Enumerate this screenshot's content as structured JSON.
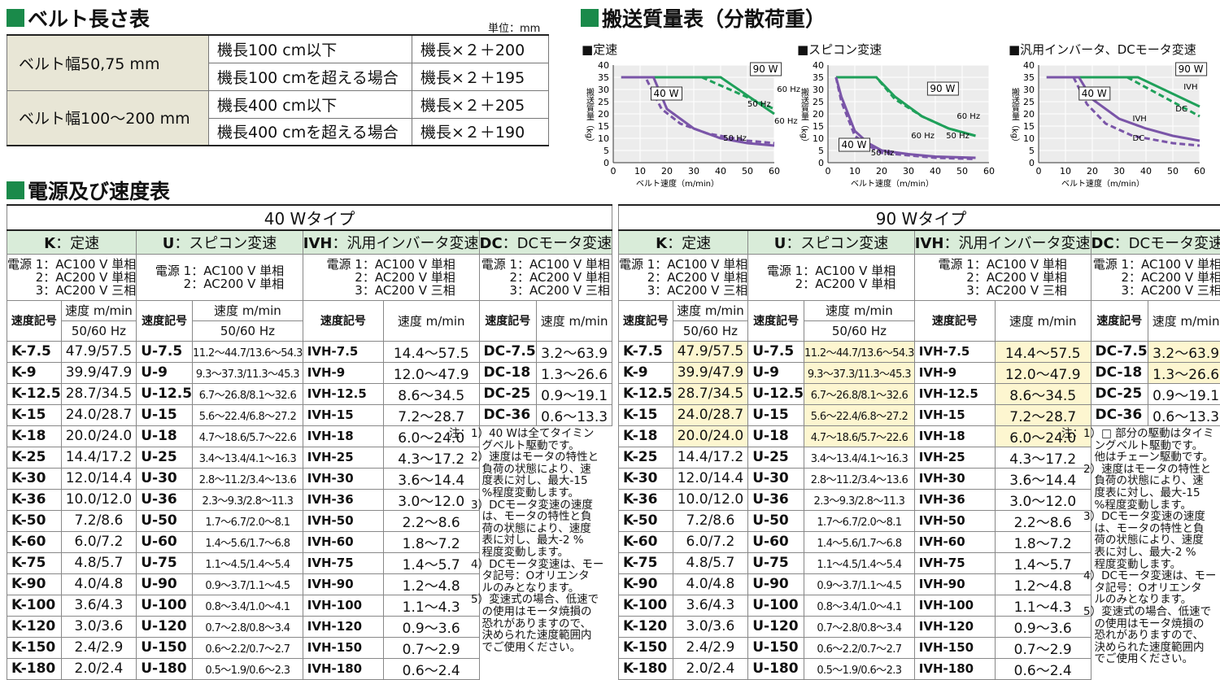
{
  "belt": {
    "title": "ベルト長さ表",
    "unit": "単位：mm",
    "rows": [
      {
        "width": "ベルト幅50,75 mm",
        "cond": "機長100 cm以下",
        "formula": "機長×２＋200"
      },
      {
        "width": "",
        "cond": "機長100 cmを超える場合",
        "formula": "機長×２＋195"
      },
      {
        "width": "ベルト幅100～200 mm",
        "cond": "機長400 cm以下",
        "formula": "機長×２＋205"
      },
      {
        "width": "",
        "cond": "機長400 cmを超える場合",
        "formula": "機長×２＋190"
      }
    ]
  },
  "load": {
    "title": "搬送質量表（分散荷重）",
    "ylabel": "搬送質量（kg）",
    "xlabel": "ベルト速度（m/min）",
    "charts": [
      {
        "title": "■定速"
      },
      {
        "title": "■スピコン変速"
      },
      {
        "title": "■汎用インバータ、DCモータ変速"
      }
    ]
  },
  "chart_data": [
    {
      "type": "line",
      "title": "定速",
      "xlabel": "ベルト速度（m/min）",
      "ylabel": "搬送質量（kg）",
      "xlim": [
        0,
        60
      ],
      "ylim": [
        0,
        40
      ],
      "grid": true,
      "series": [
        {
          "name": "90 W 60 Hz",
          "x": [
            3,
            40,
            60
          ],
          "y": [
            35,
            35,
            20
          ]
        },
        {
          "name": "90 W 50 Hz",
          "x": [
            3,
            33,
            60
          ],
          "y": [
            35,
            35,
            22
          ]
        },
        {
          "name": "40 W 60 Hz",
          "x": [
            3,
            15,
            20,
            30,
            40,
            50,
            60
          ],
          "y": [
            35,
            35,
            22,
            14,
            10,
            8,
            7
          ]
        },
        {
          "name": "40 W 50 Hz",
          "x": [
            3,
            12,
            18,
            25,
            35,
            50,
            60
          ],
          "y": [
            35,
            35,
            22,
            16,
            12,
            9,
            8
          ]
        }
      ],
      "labels": [
        "90 W",
        "60 Hz",
        "50 Hz",
        "40 W",
        "60 Hz",
        "50 Hz"
      ]
    },
    {
      "type": "line",
      "title": "スピコン変速",
      "xlabel": "ベルト速度（m/min）",
      "ylabel": "搬送質量（kg）",
      "xlim": [
        0,
        60
      ],
      "ylim": [
        0,
        40
      ],
      "grid": true,
      "series": [
        {
          "name": "90 W 60 Hz",
          "x": [
            3,
            18,
            25,
            35,
            45,
            55
          ],
          "y": [
            35,
            35,
            27,
            19,
            14,
            11
          ]
        },
        {
          "name": "90 W 50 Hz",
          "x": [
            3,
            18,
            25,
            35,
            45,
            55
          ],
          "y": [
            35,
            35,
            26,
            19,
            14,
            11
          ]
        },
        {
          "name": "40 W 60 Hz",
          "x": [
            3,
            5,
            10,
            15,
            20,
            30,
            40,
            55
          ],
          "y": [
            35,
            27,
            13,
            8,
            5,
            3.5,
            2.5,
            2
          ]
        },
        {
          "name": "40 W 50 Hz",
          "x": [
            3,
            5,
            10,
            15,
            20,
            30,
            40,
            55
          ],
          "y": [
            35,
            25,
            11,
            7,
            4,
            3,
            2,
            1.5
          ]
        }
      ],
      "labels": [
        "90 W",
        "60 Hz",
        "50 Hz",
        "40 W",
        "50 Hz",
        "60 Hz"
      ]
    },
    {
      "type": "line",
      "title": "汎用インバータ、DCモータ変速",
      "xlabel": "ベルト速度（m/min）",
      "ylabel": "搬送質量（kg）",
      "xlim": [
        0,
        60
      ],
      "ylim": [
        0,
        40
      ],
      "grid": true,
      "series": [
        {
          "name": "90 W IVH",
          "x": [
            3,
            37,
            60
          ],
          "y": [
            35,
            35,
            23
          ]
        },
        {
          "name": "90 W DC",
          "x": [
            3,
            33,
            60
          ],
          "y": [
            35,
            35,
            19
          ]
        },
        {
          "name": "40 W IVH",
          "x": [
            3,
            15,
            20,
            30,
            40,
            50,
            60
          ],
          "y": [
            35,
            35,
            26,
            18,
            14,
            11,
            9
          ]
        },
        {
          "name": "40 W DC",
          "x": [
            3,
            13,
            18,
            25,
            35,
            50,
            60
          ],
          "y": [
            35,
            35,
            24,
            16,
            11,
            8,
            7
          ]
        }
      ],
      "labels": [
        "90 W",
        "IVH",
        "DC",
        "40 W",
        "IVH",
        "DC"
      ]
    }
  ],
  "speed": {
    "title": "電源及び速度表",
    "t40": "40 Wタイプ",
    "t90": "90 Wタイプ",
    "groups": [
      {
        "code": "K",
        "name": "：定速"
      },
      {
        "code": "U",
        "name": "：スピコン変速"
      },
      {
        "code": "IVH",
        "name": "：汎用インバータ変速"
      },
      {
        "code": "DC",
        "name": "：DCモータ変速"
      }
    ],
    "power_k": "電源 1：AC100 V 単相\n2：AC200 V 単相\n3：AC200 V 三相",
    "power_u": "電源 1：AC100 V 単相\n2：AC200 V 単相",
    "h_code": "速度記号",
    "h_speed": "速度 m/min",
    "h_hz": "50/60 Hz",
    "k_codes": [
      "K-7.5",
      "K-9",
      "K-12.5",
      "K-15",
      "K-18",
      "K-25",
      "K-30",
      "K-36",
      "K-50",
      "K-60",
      "K-75",
      "K-90",
      "K-100",
      "K-120",
      "K-150",
      "K-180"
    ],
    "k_vals": [
      "47.9/57.5",
      "39.9/47.9",
      "28.7/34.5",
      "24.0/28.7",
      "20.0/24.0",
      "14.4/17.2",
      "12.0/14.4",
      "10.0/12.0",
      "7.2/8.6",
      "6.0/7.2",
      "4.8/5.7",
      "4.0/4.8",
      "3.6/4.3",
      "3.0/3.6",
      "2.4/2.9",
      "2.0/2.4"
    ],
    "u_codes": [
      "U-7.5",
      "U-9",
      "U-12.5",
      "U-15",
      "U-18",
      "U-25",
      "U-30",
      "U-36",
      "U-50",
      "U-60",
      "U-75",
      "U-90",
      "U-100",
      "U-120",
      "U-150",
      "U-180"
    ],
    "u_vals": [
      "11.2～44.7/13.6～54.3",
      "9.3～37.3/11.3～45.3",
      "6.7～26.8/8.1～32.6",
      "5.6～22.4/6.8～27.2",
      "4.7～18.6/5.7～22.6",
      "3.4～13.4/4.1～16.3",
      "2.8～11.2/3.4～13.6",
      "2.3～9.3/2.8～11.3",
      "1.7～6.7/2.0～8.1",
      "1.4～5.6/1.7～6.8",
      "1.1～4.5/1.4～5.4",
      "0.9～3.7/1.1～4.5",
      "0.8～3.4/1.0～4.1",
      "0.7～2.8/0.8～3.4",
      "0.6～2.2/0.7～2.7",
      "0.5～1.9/0.6～2.3"
    ],
    "i_codes": [
      "IVH-7.5",
      "IVH-9",
      "IVH-12.5",
      "IVH-15",
      "IVH-18",
      "IVH-25",
      "IVH-30",
      "IVH-36",
      "IVH-50",
      "IVH-60",
      "IVH-75",
      "IVH-90",
      "IVH-100",
      "IVH-120",
      "IVH-150",
      "IVH-180"
    ],
    "i_vals": [
      "14.4～57.5",
      "12.0～47.9",
      "8.6～34.5",
      "7.2～28.7",
      "6.0～24.0",
      "4.3～17.2",
      "3.6～14.4",
      "3.0～12.0",
      "2.2～8.6",
      "1.8～7.2",
      "1.4～5.7",
      "1.2～4.8",
      "1.1～4.3",
      "0.9～3.6",
      "0.7～2.9",
      "0.6～2.4"
    ],
    "d_codes": [
      "DC-7.5",
      "DC-18",
      "DC-25",
      "DC-36"
    ],
    "d_vals": [
      "3.2～63.9",
      "1.3～26.6",
      "0.9～19.1",
      "0.6～13.3"
    ],
    "notes40": "注：1）40 Wは全てタイミン\n　　　グベルト駆動です。\n　　2）速度はモータの特性と\n　　　負荷の状態により、速\n　　　度表に対し、最大-15\n　　　%程度変動します。\n　　3）DCモータ変速の速度\n　　　は、モータの特性と負\n　　　荷の状態により、速度\n　　　表に対し、最大-2 %\n　　　程度変動します。\n　　4）DCモータ変速は、モー\n　　　タ記号：Oオリエンタ\n　　　ルのみとなります。\n　　5）変速式の場合、低速で\n　　　の使用はモータ焼損の\n　　　恐れがありますので、\n　　　決められた速度範囲内\n　　　でご使用ください。",
    "notes90": "注：1）□ 部分の駆動はタイミ\n　　　ングベルト駆動です。\n　　　他はチェーン駆動です。\n　　2）速度はモータの特性と\n　　　負荷の状態により、速\n　　　度表に対し、最大-15\n　　　%程度変動します。\n　　3）DCモータ変速の速度\n　　　は、モータの特性と負\n　　　荷の状態により、速度\n　　　表に対し、最大-2 %\n　　　程度変動します。\n　　4）DCモータ変速は、モー\n　　　タ記号：Oオリエンタ\n　　　ルのみとなります。\n　　5）変速式の場合、低速で\n　　　の使用はモータ焼損の\n　　　恐れがありますので、\n　　　決められた速度範囲内\n　　　でご使用ください。"
  },
  "colors": {
    "accent": "#1a8a4a",
    "header_bg": "#d9ecd9",
    "highlight": "#fdf6d0",
    "belt_bg": "#e8e6d6",
    "line_90w": "#1fa05a",
    "line_40w": "#7a55a8"
  }
}
